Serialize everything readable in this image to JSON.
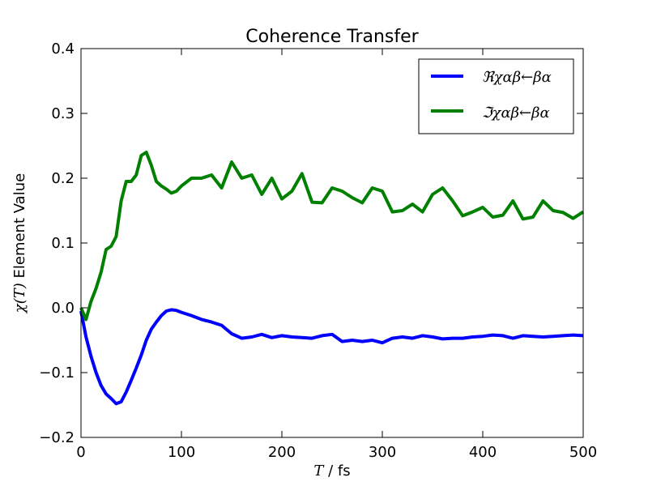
{
  "chart_data": {
    "type": "line",
    "title": "Coherence Transfer",
    "xlabel_math": "T",
    "xlabel_rest": " / fs",
    "ylabel_math": "χ(T)",
    "ylabel_rest": " Element Value",
    "xlim": [
      0,
      500
    ],
    "ylim": [
      -0.2,
      0.4
    ],
    "xticks": [
      0,
      100,
      200,
      300,
      400,
      500
    ],
    "yticks": [
      -0.2,
      -0.1,
      0.0,
      0.1,
      0.2,
      0.3,
      0.4
    ],
    "xtick_labels": [
      "0",
      "100",
      "200",
      "300",
      "400",
      "500"
    ],
    "ytick_labels": [
      "−0.2",
      "−0.1",
      "0.0",
      "0.1",
      "0.2",
      "0.3",
      "0.4"
    ],
    "grid": false,
    "legend_position": "top-right",
    "x": [
      0,
      5,
      10,
      15,
      20,
      25,
      30,
      35,
      40,
      45,
      50,
      55,
      60,
      65,
      70,
      75,
      80,
      85,
      90,
      95,
      100,
      110,
      120,
      130,
      140,
      150,
      160,
      170,
      180,
      190,
      200,
      210,
      220,
      230,
      240,
      250,
      260,
      270,
      280,
      290,
      300,
      310,
      320,
      330,
      340,
      350,
      360,
      370,
      380,
      390,
      400,
      410,
      420,
      430,
      440,
      450,
      460,
      470,
      480,
      490,
      500
    ],
    "series": [
      {
        "name": "ℜχαβ←βα",
        "legend_label": "ℜχαβ←βα",
        "color": "#0000ff",
        "values": [
          -0.005,
          -0.045,
          -0.075,
          -0.1,
          -0.12,
          -0.133,
          -0.14,
          -0.148,
          -0.145,
          -0.13,
          -0.112,
          -0.093,
          -0.073,
          -0.05,
          -0.033,
          -0.022,
          -0.012,
          -0.005,
          -0.003,
          -0.004,
          -0.007,
          -0.012,
          -0.018,
          -0.022,
          -0.027,
          -0.04,
          -0.047,
          -0.045,
          -0.041,
          -0.046,
          -0.043,
          -0.045,
          -0.046,
          -0.047,
          -0.043,
          -0.041,
          -0.052,
          -0.05,
          -0.052,
          -0.05,
          -0.054,
          -0.047,
          -0.045,
          -0.047,
          -0.043,
          -0.045,
          -0.048,
          -0.047,
          -0.047,
          -0.045,
          -0.044,
          -0.042,
          -0.043,
          -0.047,
          -0.043,
          -0.044,
          -0.045,
          -0.044,
          -0.043,
          -0.042,
          -0.043
        ]
      },
      {
        "name": "ℑχαβ←βα",
        "legend_label": "ℑχαβ←βα",
        "color": "#008000",
        "values": [
          0.0,
          -0.018,
          0.01,
          0.03,
          0.055,
          0.09,
          0.095,
          0.11,
          0.165,
          0.195,
          0.195,
          0.205,
          0.235,
          0.24,
          0.22,
          0.195,
          0.188,
          0.183,
          0.177,
          0.18,
          0.188,
          0.2,
          0.2,
          0.205,
          0.185,
          0.225,
          0.2,
          0.205,
          0.175,
          0.2,
          0.168,
          0.18,
          0.207,
          0.163,
          0.162,
          0.185,
          0.18,
          0.17,
          0.162,
          0.185,
          0.18,
          0.148,
          0.15,
          0.16,
          0.148,
          0.175,
          0.185,
          0.165,
          0.142,
          0.148,
          0.155,
          0.14,
          0.143,
          0.165,
          0.137,
          0.14,
          0.165,
          0.15,
          0.147,
          0.138,
          0.148
        ]
      }
    ]
  }
}
